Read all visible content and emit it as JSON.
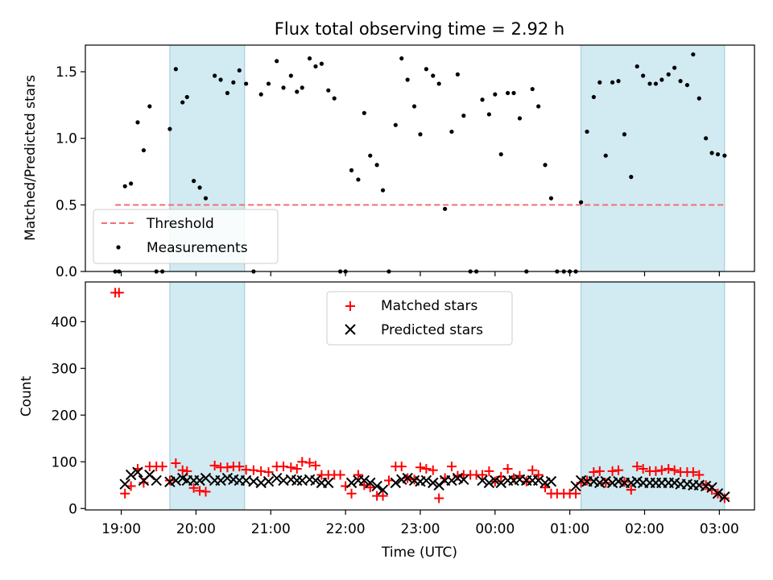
{
  "chart_data": [
    {
      "type": "scatter",
      "title": "Flux total observing time = 2.92 h",
      "xlabel": "",
      "ylabel": "Matched/Predicted stars",
      "x_unit": "hours (UTC, 19:00 = 19, 03:00 = 27)",
      "xlim": [
        18.52,
        27.47
      ],
      "ylim": [
        0,
        1.7
      ],
      "yticks": [
        0.0,
        0.5,
        1.0,
        1.5
      ],
      "ytick_labels": [
        "0.0",
        "0.5",
        "1.0",
        "1.5"
      ],
      "legend_location": "lower-left",
      "threshold": {
        "name": "Threshold",
        "value": 0.5,
        "x_range": [
          18.92,
          27.08
        ],
        "color": "#f07070",
        "style": "dashed"
      },
      "shaded_regions": [
        [
          19.65,
          20.65
        ],
        [
          25.15,
          27.07
        ]
      ],
      "shade_color": "#add8e6",
      "series": [
        {
          "name": "Measurements",
          "color": "#000000",
          "marker": "dot",
          "x": [
            18.92,
            18.97,
            19.05,
            19.13,
            19.22,
            19.3,
            19.38,
            19.47,
            19.55,
            19.65,
            19.73,
            19.82,
            19.88,
            19.97,
            20.05,
            20.13,
            20.25,
            20.33,
            20.42,
            20.5,
            20.58,
            20.67,
            20.77,
            20.87,
            20.97,
            21.08,
            21.17,
            21.27,
            21.35,
            21.42,
            21.52,
            21.6,
            21.68,
            21.77,
            21.85,
            21.93,
            22.0,
            22.08,
            22.17,
            22.25,
            22.33,
            22.42,
            22.5,
            22.58,
            22.67,
            22.75,
            22.83,
            22.92,
            23.0,
            23.08,
            23.17,
            23.25,
            23.33,
            23.42,
            23.5,
            23.58,
            23.67,
            23.75,
            23.83,
            23.92,
            24.0,
            24.08,
            24.17,
            24.25,
            24.33,
            24.42,
            24.5,
            24.58,
            24.67,
            24.75,
            24.83,
            24.92,
            25.0,
            25.08,
            25.15,
            25.23,
            25.32,
            25.4,
            25.48,
            25.57,
            25.65,
            25.73,
            25.82,
            25.9,
            25.98,
            26.07,
            26.15,
            26.23,
            26.32,
            26.4,
            26.48,
            26.57,
            26.65,
            26.73,
            26.82,
            26.9,
            26.98,
            27.07
          ],
          "y": [
            0.0,
            0.0,
            0.64,
            0.66,
            1.12,
            0.91,
            1.24,
            0.0,
            0.0,
            1.07,
            1.52,
            1.27,
            1.31,
            0.68,
            0.63,
            0.55,
            1.47,
            1.44,
            1.34,
            1.42,
            1.51,
            1.41,
            0.0,
            1.33,
            1.41,
            1.58,
            1.38,
            1.47,
            1.35,
            1.38,
            1.6,
            1.54,
            1.56,
            1.36,
            1.3,
            0.0,
            0.0,
            0.76,
            0.69,
            1.19,
            0.87,
            0.8,
            0.61,
            0.0,
            1.1,
            1.6,
            1.44,
            1.24,
            1.03,
            1.52,
            1.47,
            1.41,
            0.47,
            1.05,
            1.48,
            1.17,
            0.0,
            0.0,
            1.29,
            1.18,
            1.33,
            0.88,
            1.34,
            1.34,
            1.15,
            0.0,
            1.37,
            1.24,
            0.8,
            0.55,
            0.0,
            0.0,
            0.0,
            0.0,
            0.52,
            1.05,
            1.31,
            1.42,
            0.87,
            1.42,
            1.43,
            1.03,
            0.71,
            1.54,
            1.47,
            1.41,
            1.41,
            1.44,
            1.48,
            1.53,
            1.43,
            1.4,
            1.63,
            1.3,
            1.0,
            0.89,
            0.88,
            0.87
          ]
        }
      ]
    },
    {
      "type": "scatter",
      "title": "",
      "xlabel": "Time (UTC)",
      "ylabel": "Count",
      "x_unit": "hours (UTC, 19:00 = 19, 03:00 = 27)",
      "xlim": [
        18.52,
        27.47
      ],
      "ylim": [
        -3,
        485
      ],
      "yticks": [
        0,
        100,
        200,
        300,
        400
      ],
      "ytick_labels": [
        "0",
        "100",
        "200",
        "300",
        "400"
      ],
      "xticks": [
        19,
        20,
        21,
        22,
        23,
        24,
        25,
        26,
        27
      ],
      "xtick_labels": [
        "19:00",
        "20:00",
        "21:00",
        "22:00",
        "23:00",
        "00:00",
        "01:00",
        "02:00",
        "03:00"
      ],
      "legend_location": "upper-center",
      "shaded_regions": [
        [
          19.65,
          20.65
        ],
        [
          25.15,
          27.07
        ]
      ],
      "shade_color": "#add8e6",
      "series": [
        {
          "name": "Matched stars",
          "color": "#ff0000",
          "marker": "plus",
          "x": [
            18.92,
            18.97,
            19.05,
            19.13,
            19.22,
            19.3,
            19.38,
            19.47,
            19.55,
            19.65,
            19.73,
            19.82,
            19.88,
            19.97,
            20.05,
            20.13,
            20.25,
            20.33,
            20.42,
            20.5,
            20.58,
            20.67,
            20.77,
            20.87,
            20.97,
            21.08,
            21.17,
            21.27,
            21.35,
            21.42,
            21.52,
            21.6,
            21.68,
            21.77,
            21.85,
            21.93,
            22.0,
            22.08,
            22.17,
            22.25,
            22.33,
            22.42,
            22.5,
            22.58,
            22.67,
            22.75,
            22.83,
            22.92,
            23.0,
            23.08,
            23.17,
            23.25,
            23.33,
            23.42,
            23.5,
            23.58,
            23.67,
            23.75,
            23.83,
            23.92,
            24.0,
            24.08,
            24.17,
            24.25,
            24.33,
            24.42,
            24.5,
            24.58,
            24.67,
            24.75,
            24.83,
            24.92,
            25.0,
            25.08,
            25.15,
            25.23,
            25.32,
            25.4,
            25.48,
            25.57,
            25.65,
            25.73,
            25.82,
            25.9,
            25.98,
            26.07,
            26.15,
            26.23,
            26.32,
            26.4,
            26.48,
            26.57,
            26.65,
            26.73,
            26.82,
            26.9,
            26.98,
            27.07
          ],
          "y": [
            462,
            462,
            32,
            48,
            85,
            55,
            90,
            90,
            90,
            60,
            97,
            82,
            80,
            44,
            38,
            36,
            92,
            88,
            88,
            90,
            90,
            83,
            82,
            80,
            78,
            90,
            90,
            88,
            85,
            100,
            98,
            92,
            72,
            72,
            72,
            72,
            48,
            32,
            72,
            50,
            45,
            27,
            27,
            60,
            90,
            90,
            65,
            62,
            88,
            85,
            82,
            22,
            65,
            90,
            70,
            72,
            72,
            72,
            72,
            80,
            58,
            68,
            85,
            65,
            70,
            58,
            82,
            72,
            45,
            32,
            32,
            32,
            32,
            32,
            55,
            60,
            78,
            80,
            55,
            80,
            82,
            57,
            40,
            90,
            85,
            80,
            80,
            82,
            85,
            82,
            78,
            78,
            78,
            72,
            50,
            40,
            32,
            22
          ]
        },
        {
          "name": "Predicted stars",
          "color": "#000000",
          "marker": "x",
          "x": [
            19.05,
            19.13,
            19.22,
            19.3,
            19.38,
            19.47,
            19.65,
            19.73,
            19.82,
            19.88,
            19.97,
            20.05,
            20.13,
            20.25,
            20.33,
            20.42,
            20.5,
            20.58,
            20.67,
            20.77,
            20.87,
            20.97,
            21.08,
            21.17,
            21.27,
            21.35,
            21.42,
            21.52,
            21.6,
            21.68,
            21.77,
            22.08,
            22.17,
            22.25,
            22.33,
            22.42,
            22.5,
            22.67,
            22.75,
            22.83,
            22.92,
            23.0,
            23.08,
            23.17,
            23.25,
            23.33,
            23.42,
            23.5,
            23.58,
            23.83,
            23.92,
            24.0,
            24.08,
            24.17,
            24.25,
            24.33,
            24.42,
            24.5,
            24.58,
            24.67,
            24.75,
            25.08,
            25.15,
            25.23,
            25.32,
            25.4,
            25.48,
            25.57,
            25.65,
            25.73,
            25.82,
            25.9,
            25.98,
            26.07,
            26.15,
            26.23,
            26.32,
            26.4,
            26.48,
            26.57,
            26.65,
            26.73,
            26.82,
            26.9,
            26.98,
            27.07
          ],
          "y": [
            52,
            72,
            78,
            60,
            72,
            60,
            57,
            60,
            65,
            60,
            60,
            60,
            65,
            60,
            60,
            65,
            62,
            60,
            60,
            58,
            55,
            58,
            65,
            60,
            62,
            60,
            60,
            62,
            60,
            55,
            55,
            55,
            60,
            60,
            55,
            48,
            40,
            55,
            62,
            65,
            60,
            58,
            60,
            55,
            50,
            60,
            60,
            65,
            62,
            60,
            55,
            60,
            55,
            60,
            60,
            62,
            60,
            60,
            60,
            55,
            58,
            48,
            60,
            58,
            58,
            55,
            58,
            55,
            58,
            55,
            55,
            58,
            55,
            55,
            55,
            55,
            55,
            55,
            52,
            52,
            50,
            50,
            48,
            45,
            32,
            25
          ]
        }
      ]
    }
  ]
}
